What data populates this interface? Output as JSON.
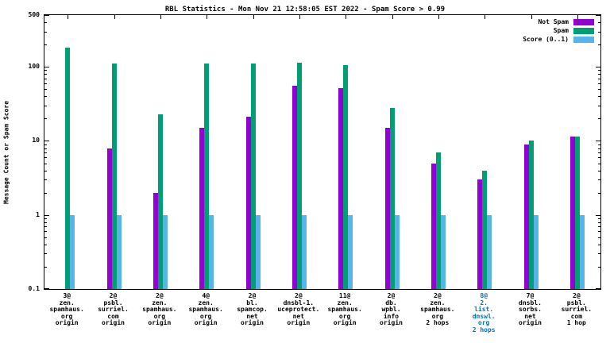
{
  "chart_data": {
    "type": "bar",
    "title": "RBL Statistics - Mon Nov 21 12:58:05 EST 2022 - Spam Score > 0.99",
    "ylabel": "Message Count or Spam Score",
    "yscale": "log",
    "ylim": [
      0.1,
      500
    ],
    "yticks": [
      "500",
      "100",
      "10",
      "1",
      "0.1"
    ],
    "ytick_values": [
      500,
      100,
      10,
      1,
      0.1
    ],
    "grid": false,
    "legend_position": "top-right-inside",
    "categories": [
      {
        "lines": [
          "3@",
          "zen.",
          "spamhaus.",
          "org",
          "origin"
        ],
        "label_color": "#000000"
      },
      {
        "lines": [
          "2@",
          "psbl.",
          "surriel.",
          "com",
          "origin"
        ],
        "label_color": "#000000"
      },
      {
        "lines": [
          "2@",
          "zen.",
          "spamhaus.",
          "org",
          "origin"
        ],
        "label_color": "#000000"
      },
      {
        "lines": [
          "4@",
          "zen.",
          "spamhaus.",
          "org",
          "origin"
        ],
        "label_color": "#000000"
      },
      {
        "lines": [
          "2@",
          "bl.",
          "spamcop.",
          "net",
          "origin"
        ],
        "label_color": "#000000"
      },
      {
        "lines": [
          "2@",
          "dnsbl-1.",
          "uceprotect.",
          "net",
          "origin"
        ],
        "label_color": "#000000"
      },
      {
        "lines": [
          "11@",
          "zen.",
          "spamhaus.",
          "org",
          "origin"
        ],
        "label_color": "#000000"
      },
      {
        "lines": [
          "2@",
          "db.",
          "wpbl.",
          "info",
          "origin"
        ],
        "label_color": "#000000"
      },
      {
        "lines": [
          "2@",
          "zen.",
          "spamhaus.",
          "org",
          "2 hops"
        ],
        "label_color": "#000000"
      },
      {
        "lines": [
          "8@",
          "2.",
          "list.",
          "dnswl.",
          "org",
          "2 hops"
        ],
        "label_color": "#0072b2"
      },
      {
        "lines": [
          "7@",
          "dnsbl.",
          "sorbs.",
          "net",
          "origin"
        ],
        "label_color": "#000000"
      },
      {
        "lines": [
          "2@",
          "psbl.",
          "surriel.",
          "com",
          "1 hop"
        ],
        "label_color": "#000000"
      }
    ],
    "series": [
      {
        "name": "Not Spam",
        "color": "#9400d3",
        "values": [
          null,
          8,
          2,
          15,
          21,
          55,
          52,
          15,
          5,
          3,
          9,
          11.5
        ]
      },
      {
        "name": "Spam",
        "color": "#009e73",
        "values": [
          180,
          110,
          23,
          110,
          110,
          115,
          105,
          28,
          7,
          4,
          10,
          11.5
        ]
      },
      {
        "name": "Score (0..1)",
        "color": "#56b4e9",
        "values": [
          1,
          1,
          1,
          1,
          1,
          1,
          1,
          1,
          1,
          1,
          1,
          1
        ]
      }
    ]
  }
}
